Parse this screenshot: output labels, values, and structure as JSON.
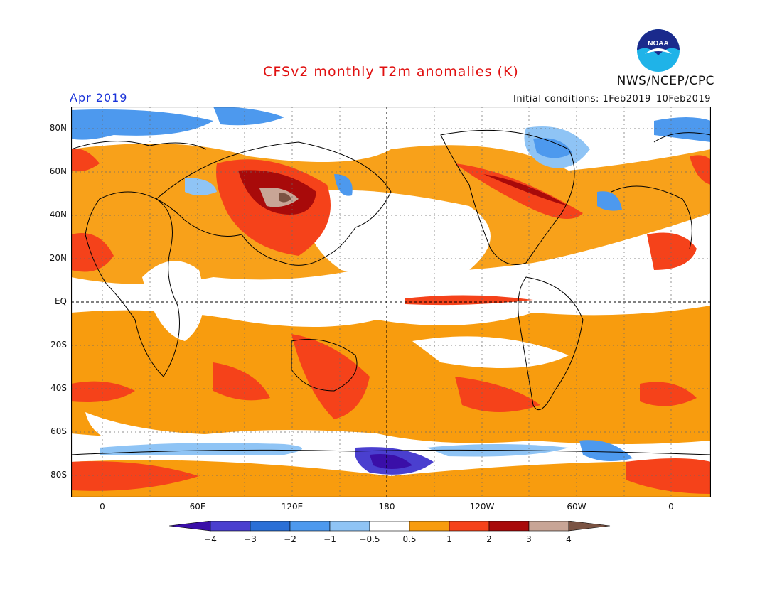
{
  "title": "CFSv2 monthly T2m anomalies (K)",
  "month": "Apr 2019",
  "initial_conditions": "Initial conditions: 1Feb2019–10Feb2019",
  "agency": "NWS/NCEP/CPC",
  "logo_text": "NOAA",
  "lat_labels": [
    "80N",
    "60N",
    "40N",
    "20N",
    "EQ",
    "20S",
    "40S",
    "60S",
    "80S"
  ],
  "lon_labels": [
    "0",
    "60E",
    "120E",
    "180",
    "120W",
    "60W",
    "0"
  ],
  "colorbar": {
    "ticks": [
      "−4",
      "−3",
      "−2",
      "−1",
      "−0.5",
      "0.5",
      "1",
      "2",
      "3",
      "4"
    ],
    "colors": [
      "#3a0fa8",
      "#4a3fcf",
      "#2a6fd6",
      "#4d99ee",
      "#8fc4f5",
      "#ffffff",
      "#f89c0e",
      "#f5421a",
      "#a80a0a",
      "#c8a596",
      "#7a5343"
    ]
  },
  "colors": {
    "title": "#e01010",
    "month": "#1a33d9",
    "background": "#ffffff"
  }
}
